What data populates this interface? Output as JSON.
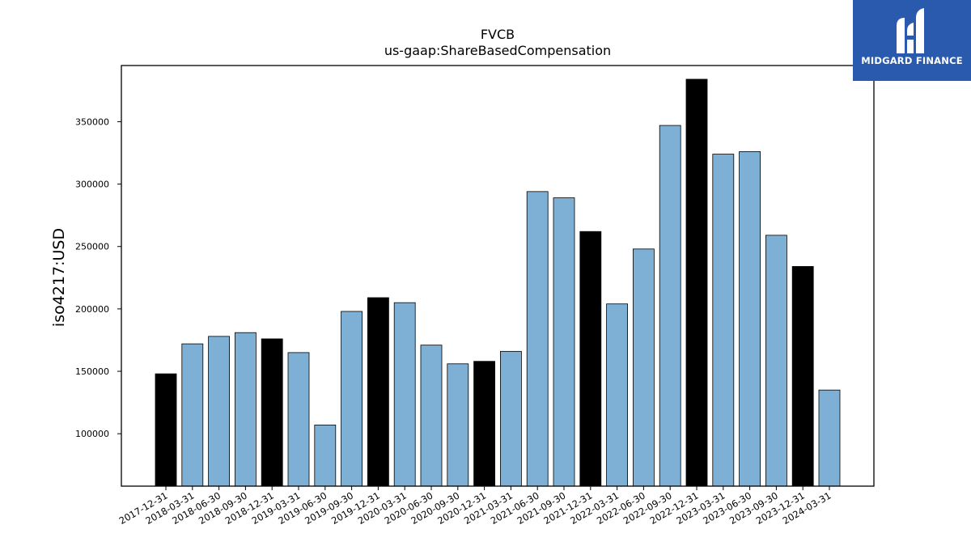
{
  "chart_data": {
    "type": "bar",
    "title": "FVCB",
    "subtitle": "us-gaap:ShareBasedCompensation",
    "xlabel": "",
    "ylabel": "iso4217:USD",
    "ylim": [
      58000,
      395000
    ],
    "yticks": [
      100000,
      150000,
      200000,
      250000,
      300000,
      350000
    ],
    "grid": false,
    "categories": [
      "2017-12-31",
      "2018-03-31",
      "2018-06-30",
      "2018-09-30",
      "2018-12-31",
      "2019-03-31",
      "2019-06-30",
      "2019-09-30",
      "2019-12-31",
      "2020-03-31",
      "2020-06-30",
      "2020-09-30",
      "2020-12-31",
      "2021-03-31",
      "2021-06-30",
      "2021-09-30",
      "2021-12-31",
      "2022-03-31",
      "2022-06-30",
      "2022-09-30",
      "2022-12-31",
      "2023-03-31",
      "2023-06-30",
      "2023-09-30",
      "2023-12-31",
      "2024-03-31"
    ],
    "values": [
      148000,
      172000,
      178000,
      181000,
      176000,
      165000,
      107000,
      198000,
      209000,
      205000,
      171000,
      156000,
      158000,
      166000,
      294000,
      289000,
      262000,
      204000,
      248000,
      347000,
      384000,
      324000,
      326000,
      259000,
      234000,
      135000
    ],
    "colors": {
      "q4": "#000000",
      "other": "#7eb0d5",
      "edge": "#000000"
    }
  },
  "logo": {
    "text": "MIDGARD FINANCE",
    "background": "#2a5aad"
  }
}
